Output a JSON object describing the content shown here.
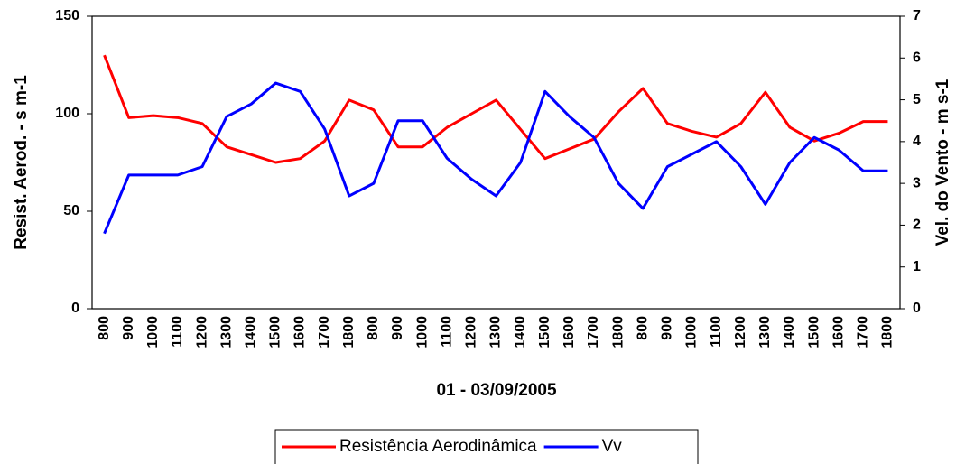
{
  "chart_data": {
    "type": "line",
    "x_label": "01 - 03/09/2005",
    "y_label": "Resist. Aerod. - s m-1",
    "y2_label": "Vel. do Vento - m s-1",
    "categories": [
      "800",
      "900",
      "1000",
      "1100",
      "1200",
      "1300",
      "1400",
      "1500",
      "1600",
      "1700",
      "1800",
      "800",
      "900",
      "1000",
      "1100",
      "1200",
      "1300",
      "1400",
      "1500",
      "1600",
      "1700",
      "1800",
      "800",
      "900",
      "1000",
      "1100",
      "1200",
      "1300",
      "1400",
      "1500",
      "1600",
      "1700",
      "1800"
    ],
    "series": [
      {
        "name": "Resistência Aerodinâmica",
        "color": "#ff0000",
        "values": [
          130,
          98,
          99,
          98,
          95,
          83,
          79,
          75,
          77,
          86,
          107,
          102,
          83,
          83,
          93,
          100,
          107,
          92,
          77,
          82,
          87,
          101,
          113,
          95,
          91,
          88,
          95,
          111,
          93,
          86,
          90,
          96,
          96
        ]
      },
      {
        "name": "Vv",
        "color": "#0000ff",
        "axis": "y2",
        "values": [
          1.8,
          3.2,
          3.2,
          3.2,
          3.4,
          4.6,
          4.9,
          5.4,
          5.2,
          4.3,
          2.7,
          3.0,
          4.5,
          4.5,
          3.6,
          3.1,
          2.7,
          3.5,
          5.2,
          4.6,
          4.1,
          3.0,
          2.4,
          3.4,
          3.7,
          4.0,
          3.4,
          2.5,
          3.5,
          4.1,
          3.8,
          3.3,
          3.3
        ]
      }
    ],
    "ylim": [
      0,
      150
    ],
    "yticks": [
      0,
      50,
      100,
      150
    ],
    "y2lim": [
      0,
      7
    ],
    "y2ticks": [
      0,
      1,
      2,
      3,
      4,
      5,
      6,
      7
    ],
    "grid": false,
    "legend": "bottom"
  }
}
